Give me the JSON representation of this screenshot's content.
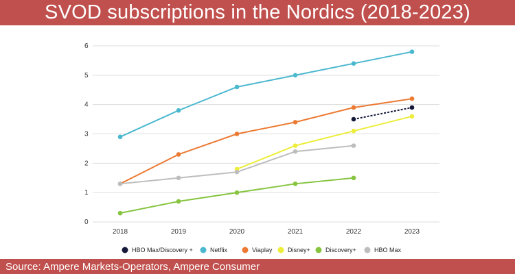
{
  "title": "SVOD subscriptions in the Nordics (2018-2023)",
  "source": "Source: Ampere Markets-Operators, Ampere Consumer",
  "colors": {
    "banner": "#c0504d",
    "grid": "#dddddd"
  },
  "chart_data": {
    "type": "line",
    "x": [
      "2018",
      "2019",
      "2020",
      "2021",
      "2022",
      "2023"
    ],
    "ylim": [
      0,
      6
    ],
    "yticks": [
      "0",
      "1",
      "2",
      "3",
      "4",
      "5",
      "6"
    ],
    "grid": true,
    "legend_position": "bottom",
    "series": [
      {
        "name": "HBO Max/Discovery +",
        "color": "#14193a",
        "dashed": true,
        "values": [
          null,
          null,
          null,
          null,
          3.5,
          3.9
        ]
      },
      {
        "name": "Netflix",
        "color": "#4ab8cf",
        "values": [
          2.9,
          3.8,
          4.6,
          5.0,
          5.4,
          5.8
        ]
      },
      {
        "name": "Viaplay",
        "color": "#ec7a33",
        "values": [
          1.3,
          2.3,
          3.0,
          3.4,
          3.9,
          4.2
        ]
      },
      {
        "name": "Disney+",
        "color": "#eded3a",
        "values": [
          null,
          null,
          1.8,
          2.6,
          3.1,
          3.6
        ]
      },
      {
        "name": "Discovery+",
        "color": "#86c43f",
        "values": [
          0.3,
          0.7,
          1.0,
          1.3,
          1.5,
          null
        ]
      },
      {
        "name": "HBO Max",
        "color": "#bdbdbd",
        "values": [
          1.3,
          1.5,
          1.7,
          2.4,
          2.6,
          null
        ]
      }
    ]
  }
}
